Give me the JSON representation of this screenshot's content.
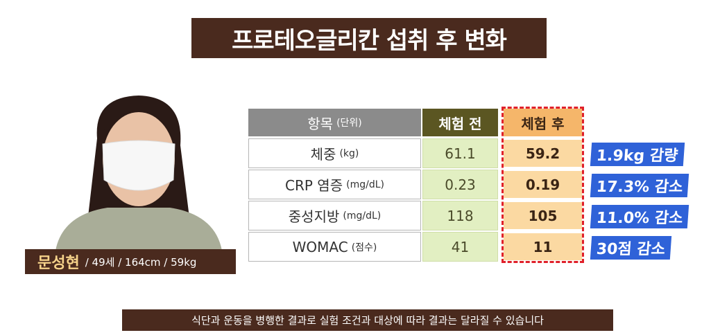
{
  "title": "프로테오글리칸 섭취 후 변화",
  "person": {
    "name": "문성현",
    "details": "/ 49세 / 164cm / 59kg"
  },
  "table": {
    "header": {
      "item": "항목",
      "unit": "(단위)",
      "before": "체험 전",
      "after": "체험 후"
    },
    "rows": [
      {
        "item": "체중",
        "unit": "(kg)",
        "before": "61.1",
        "after": "59.2",
        "change": "1.9kg 감량"
      },
      {
        "item": "CRP 염증",
        "unit": "(mg/dL)",
        "before": "0.23",
        "after": "0.19",
        "change": "17.3% 감소"
      },
      {
        "item": "중성지방",
        "unit": "(mg/dL)",
        "before": "118",
        "after": "105",
        "change": "11.0% 감소"
      },
      {
        "item": "WOMAC",
        "unit": "(점수)",
        "before": "41",
        "after": "11",
        "change": "30점 감소"
      }
    ]
  },
  "note": "식단과 운동을 병행한 결과로 실험 조건과 대상에 따라 결과는 달라질 수 있습니다"
}
